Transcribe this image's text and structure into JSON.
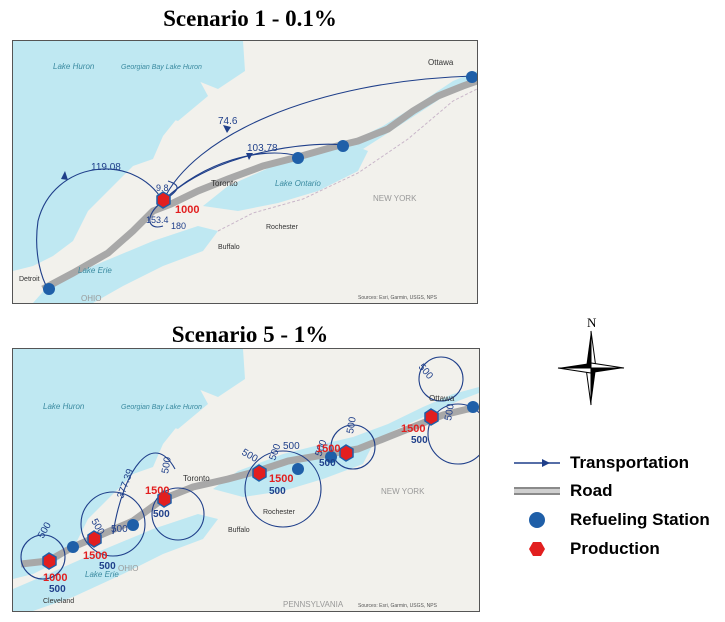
{
  "scenarios": [
    {
      "title": "Scenario 1 - 0.1%",
      "place_labels": {
        "lake_huron": "Lake Huron",
        "georgian_bay": "Georgian Bay Lake Huron",
        "toronto": "Toronto",
        "lake_ontario": "Lake Ontario",
        "rochester": "Rochester",
        "buffalo": "Buffalo",
        "new_york": "NEW YORK",
        "ottawa": "Ottawa",
        "lake_erie": "Lake Erie",
        "detroit": "Detroit",
        "ohio": "OHIO"
      },
      "flow_labels": [
        "74.6",
        "119.08",
        "103.78",
        "9.8",
        "153.4",
        "180"
      ],
      "production_labels": [
        "1000"
      ],
      "source": "Sources: Esri, Garmin, USGS, NPS"
    },
    {
      "title": "Scenario 5 - 1%",
      "place_labels": {
        "lake_huron": "Lake Huron",
        "georgian_bay": "Georgian Bay Lake Huron",
        "toronto": "Toronto",
        "rochester": "Rochester",
        "buffalo": "Buffalo",
        "new_york": "NEW YORK",
        "ottawa": "Ottawa",
        "lake_erie": "Lake Erie",
        "cleveland": "Cleveland",
        "ohio": "OHIO",
        "pennsylvania": "PENNSYLVANIA"
      },
      "flow_labels": [
        "500",
        "500",
        "500",
        "377.39",
        "500",
        "500",
        "500",
        "500",
        "500",
        "500",
        "500",
        "500"
      ],
      "production_labels": [
        "1000",
        "500",
        "1500",
        "500",
        "1500",
        "500",
        "1500",
        "500",
        "1500",
        "500",
        "1500",
        "500"
      ],
      "source": "Sources: Esri, Garmin, USGS, NPS"
    }
  ],
  "compass": {
    "north_label": "N"
  },
  "legend": [
    {
      "id": "transportation",
      "label": "Transportation",
      "icon": "arrow-line"
    },
    {
      "id": "road",
      "label": "Road",
      "icon": "grey-band"
    },
    {
      "id": "refueling",
      "label": "Refueling Station",
      "icon": "blue-dot"
    },
    {
      "id": "production",
      "label": "Production",
      "icon": "red-hexagon"
    }
  ],
  "colors": {
    "water": "#bfe8f2",
    "land": "#f2f1ec",
    "road": "#a8a8a8",
    "flow": "#1f3f8a",
    "station": "#1f5fa8",
    "production": "#e21f1f",
    "production_text": "#e21f1f",
    "flow_text": "#1f3f8a"
  }
}
